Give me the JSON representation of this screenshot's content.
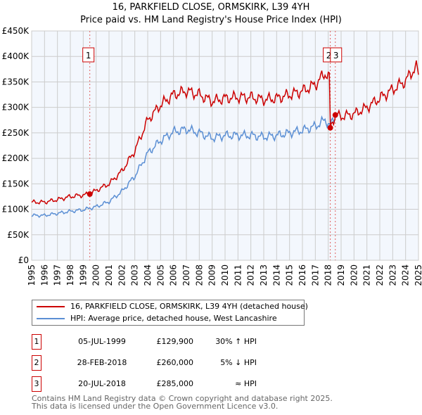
{
  "chart_data": {
    "type": "line",
    "title": "16, PARKFIELD CLOSE, ORMSKIRK, L39 4YH",
    "subtitle": "Price paid vs. HM Land Registry's House Price Index (HPI)",
    "xlim": [
      1995,
      2025
    ],
    "ylim": [
      0,
      450000
    ],
    "x_ticks": [
      "1995",
      "1996",
      "1997",
      "1998",
      "1999",
      "2000",
      "2001",
      "2002",
      "2003",
      "2004",
      "2005",
      "2006",
      "2007",
      "2008",
      "2009",
      "2010",
      "2011",
      "2012",
      "2013",
      "2014",
      "2015",
      "2016",
      "2017",
      "2018",
      "2019",
      "2020",
      "2021",
      "2022",
      "2023",
      "2024",
      "2025"
    ],
    "y_ticks": [
      {
        "v": 0,
        "l": "£0"
      },
      {
        "v": 50000,
        "l": "£50K"
      },
      {
        "v": 100000,
        "l": "£100K"
      },
      {
        "v": 150000,
        "l": "£150K"
      },
      {
        "v": 200000,
        "l": "£200K"
      },
      {
        "v": 250000,
        "l": "£250K"
      },
      {
        "v": 300000,
        "l": "£300K"
      },
      {
        "v": 350000,
        "l": "£350K"
      },
      {
        "v": 400000,
        "l": "£400K"
      },
      {
        "v": 450000,
        "l": "£450K"
      }
    ],
    "grid": true,
    "series": [
      {
        "name": "16, PARKFIELD CLOSE, ORMSKIRK, L39 4YH (detached house)",
        "color": "#cc0000",
        "x": [
          1995,
          1996,
          1997,
          1998,
          1999,
          1999.5,
          2000,
          2001,
          2002,
          2003,
          2004,
          2005,
          2006,
          2007,
          2008,
          2009,
          2010,
          2011,
          2012,
          2013,
          2014,
          2015,
          2016,
          2017,
          2017.8,
          2018.15,
          2018.16,
          2018.55,
          2019,
          2020,
          2021,
          2022,
          2023,
          2024,
          2024.8,
          2025
        ],
        "y": [
          114000,
          114000,
          119000,
          125000,
          128000,
          129900,
          137000,
          150000,
          175000,
          215000,
          275000,
          305000,
          325000,
          332000,
          325000,
          312000,
          318000,
          320000,
          320000,
          315000,
          318000,
          325000,
          332000,
          345000,
          368000,
          355000,
          260000,
          285000,
          282000,
          287000,
          300000,
          318000,
          335000,
          352000,
          380000,
          365000
        ]
      },
      {
        "name": "HPI: Average price, detached house, West Lancashire",
        "color": "#5b8fd4",
        "x": [
          1995,
          1996,
          1997,
          1998,
          1999,
          2000,
          2001,
          2002,
          2003,
          2004,
          2005,
          2006,
          2007,
          2008,
          2009,
          2010,
          2011,
          2012,
          2013,
          2014,
          2015,
          2016,
          2017,
          2017.8,
          2018.15,
          2018.55
        ],
        "y": [
          88000,
          88000,
          92000,
          96000,
          99000,
          105000,
          115000,
          135000,
          165000,
          210000,
          235000,
          252000,
          257000,
          250000,
          240000,
          245000,
          245000,
          245000,
          242000,
          245000,
          250000,
          255000,
          263000,
          276000,
          262000,
          285000
        ]
      }
    ],
    "sales": [
      {
        "label": "1",
        "x": 1999.51,
        "price": 129900
      },
      {
        "label": "2",
        "x": 2018.16,
        "price": 260000
      },
      {
        "label": "3",
        "x": 2018.55,
        "price": 285000
      }
    ]
  },
  "legend": {
    "red": "16, PARKFIELD CLOSE, ORMSKIRK, L39 4YH (detached house)",
    "blue": "HPI: Average price, detached house, West Lancashire"
  },
  "table": [
    {
      "num": "1",
      "date": "05-JUL-1999",
      "price": "£129,900",
      "hpi": "30% ↑ HPI"
    },
    {
      "num": "2",
      "date": "28-FEB-2018",
      "price": "£260,000",
      "hpi": "5% ↓ HPI"
    },
    {
      "num": "3",
      "date": "20-JUL-2018",
      "price": "£285,000",
      "hpi": "≈ HPI"
    }
  ],
  "footer": {
    "line1": "Contains HM Land Registry data © Crown copyright and database right 2025.",
    "line2": "This data is licensed under the Open Government Licence v3.0."
  }
}
